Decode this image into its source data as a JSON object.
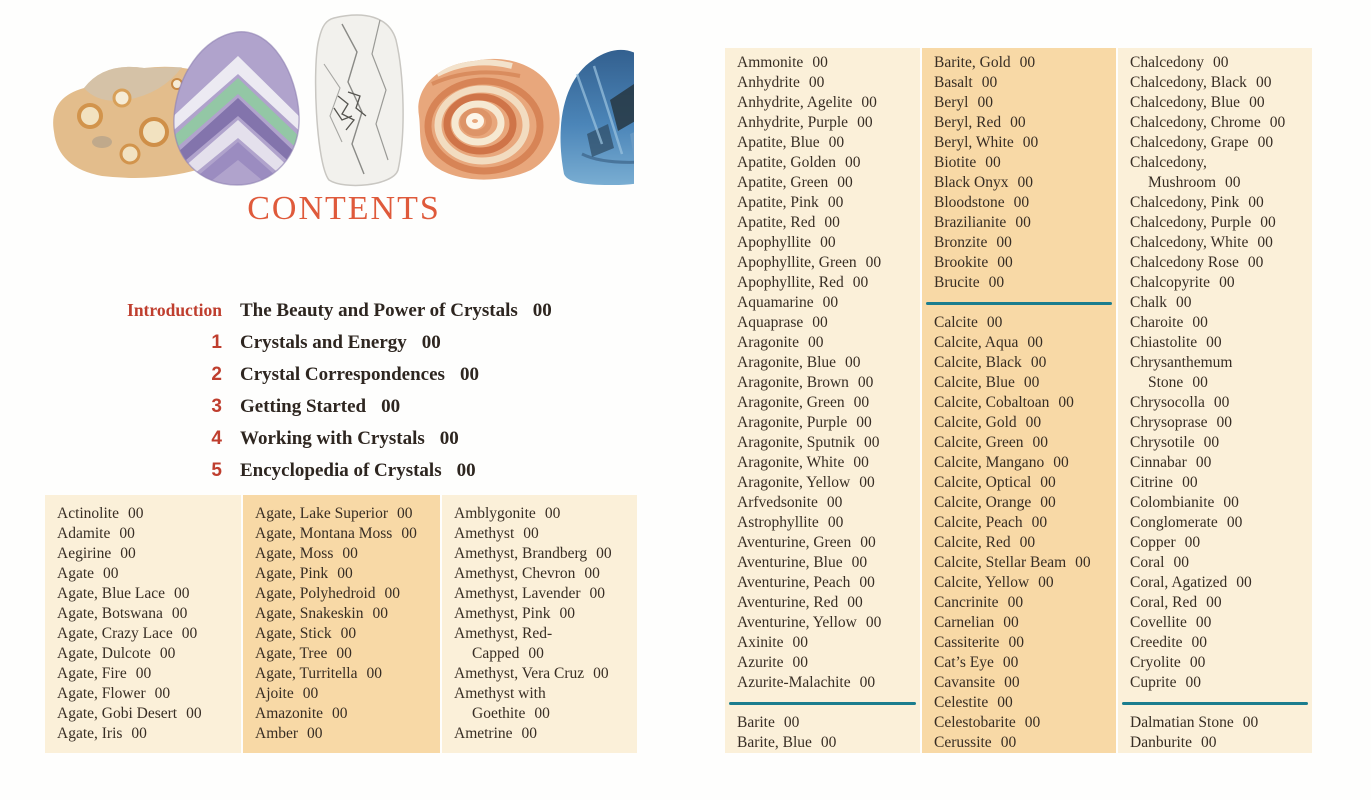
{
  "title": "CONTENTS",
  "colors": {
    "title_red": "#df5a3b",
    "chapter_red": "#bf3e2e",
    "body_text": "#372d24",
    "panel_light": "#fbf0d9",
    "panel_dark": "#f8d9a6",
    "divider_teal": "#1b7d8e"
  },
  "header_photos": [
    "ocean-jasper",
    "fluorite",
    "howlite",
    "lace-agate",
    "labradorite"
  ],
  "chapters": [
    {
      "label": "Introduction",
      "title": "The Beauty and Power of Crystals",
      "page": "00"
    },
    {
      "label": "1",
      "title": "Crystals and Energy",
      "page": "00"
    },
    {
      "label": "2",
      "title": "Crystal Correspondences",
      "page": "00"
    },
    {
      "label": "3",
      "title": "Getting Started",
      "page": "00"
    },
    {
      "label": "4",
      "title": "Working with Crystals",
      "page": "00"
    },
    {
      "label": "5",
      "title": "Encyclopedia of Crystals",
      "page": "00"
    }
  ],
  "left_columns": [
    [
      {
        "name": "Actinolite",
        "page": "00"
      },
      {
        "name": "Adamite",
        "page": "00"
      },
      {
        "name": "Aegirine",
        "page": "00"
      },
      {
        "name": "Agate",
        "page": "00"
      },
      {
        "name": "Agate, Blue Lace",
        "page": "00"
      },
      {
        "name": "Agate, Botswana",
        "page": "00"
      },
      {
        "name": "Agate, Crazy Lace",
        "page": "00"
      },
      {
        "name": "Agate, Dulcote",
        "page": "00"
      },
      {
        "name": "Agate, Fire",
        "page": "00"
      },
      {
        "name": "Agate, Flower",
        "page": "00"
      },
      {
        "name": "Agate, Gobi Desert",
        "page": "00"
      },
      {
        "name": "Agate, Iris",
        "page": "00"
      }
    ],
    [
      {
        "name": "Agate, Lake Superior",
        "page": "00"
      },
      {
        "name": "Agate, Montana Moss",
        "page": "00"
      },
      {
        "name": "Agate, Moss",
        "page": "00"
      },
      {
        "name": "Agate, Pink",
        "page": "00"
      },
      {
        "name": "Agate, Polyhedroid",
        "page": "00"
      },
      {
        "name": "Agate, Snakeskin",
        "page": "00"
      },
      {
        "name": "Agate, Stick",
        "page": "00"
      },
      {
        "name": "Agate, Tree",
        "page": "00"
      },
      {
        "name": "Agate, Turritella",
        "page": "00"
      },
      {
        "name": "Ajoite",
        "page": "00"
      },
      {
        "name": "Amazonite",
        "page": "00"
      },
      {
        "name": "Amber",
        "page": "00"
      }
    ],
    [
      {
        "name": "Amblygonite",
        "page": "00"
      },
      {
        "name": "Amethyst",
        "page": "00"
      },
      {
        "name": "Amethyst, Brandberg",
        "page": "00"
      },
      {
        "name": "Amethyst, Chevron",
        "page": "00"
      },
      {
        "name": "Amethyst, Lavender",
        "page": "00"
      },
      {
        "name": "Amethyst, Pink",
        "page": "00"
      },
      {
        "name": "Amethyst, Red-",
        "name2": "Capped",
        "page": "00"
      },
      {
        "name": "Amethyst, Vera Cruz",
        "page": "00"
      },
      {
        "name": "Amethyst with",
        "name2": "Goethite",
        "page": "00"
      },
      {
        "name": "Ametrine",
        "page": "00"
      }
    ]
  ],
  "right_columns": [
    [
      {
        "name": "Ammonite",
        "page": "00"
      },
      {
        "name": "Anhydrite",
        "page": "00"
      },
      {
        "name": "Anhydrite, Agelite",
        "page": "00"
      },
      {
        "name": "Anhydrite, Purple",
        "page": "00"
      },
      {
        "name": "Apatite, Blue",
        "page": "00"
      },
      {
        "name": "Apatite, Golden",
        "page": "00"
      },
      {
        "name": "Apatite, Green",
        "page": "00"
      },
      {
        "name": "Apatite, Pink",
        "page": "00"
      },
      {
        "name": "Apatite, Red",
        "page": "00"
      },
      {
        "name": "Apophyllite",
        "page": "00"
      },
      {
        "name": "Apophyllite, Green",
        "page": "00"
      },
      {
        "name": "Apophyllite, Red",
        "page": "00"
      },
      {
        "name": "Aquamarine",
        "page": "00"
      },
      {
        "name": "Aquaprase",
        "page": "00"
      },
      {
        "name": "Aragonite",
        "page": "00"
      },
      {
        "name": "Aragonite, Blue",
        "page": "00"
      },
      {
        "name": "Aragonite, Brown",
        "page": "00"
      },
      {
        "name": "Aragonite, Green",
        "page": "00"
      },
      {
        "name": "Aragonite, Purple",
        "page": "00"
      },
      {
        "name": "Aragonite, Sputnik",
        "page": "00"
      },
      {
        "name": "Aragonite, White",
        "page": "00"
      },
      {
        "name": "Aragonite, Yellow",
        "page": "00"
      },
      {
        "name": "Arfvedsonite",
        "page": "00"
      },
      {
        "name": "Astrophyllite",
        "page": "00"
      },
      {
        "name": "Aventurine, Green",
        "page": "00"
      },
      {
        "name": "Aventurine, Blue",
        "page": "00"
      },
      {
        "name": "Aventurine, Peach",
        "page": "00"
      },
      {
        "name": "Aventurine, Red",
        "page": "00"
      },
      {
        "name": "Aventurine, Yellow",
        "page": "00"
      },
      {
        "name": "Axinite",
        "page": "00"
      },
      {
        "name": "Azurite",
        "page": "00"
      },
      {
        "name": "Azurite-Malachite",
        "page": "00"
      },
      {
        "divider": true
      },
      {
        "name": "Barite",
        "page": "00"
      },
      {
        "name": "Barite, Blue",
        "page": "00"
      }
    ],
    [
      {
        "name": "Barite, Gold",
        "page": "00"
      },
      {
        "name": "Basalt",
        "page": "00"
      },
      {
        "name": "Beryl",
        "page": "00"
      },
      {
        "name": "Beryl, Red",
        "page": "00"
      },
      {
        "name": "Beryl, White",
        "page": "00"
      },
      {
        "name": "Biotite",
        "page": "00"
      },
      {
        "name": "Black Onyx",
        "page": "00"
      },
      {
        "name": "Bloodstone",
        "page": "00"
      },
      {
        "name": "Brazilianite",
        "page": "00"
      },
      {
        "name": "Bronzite",
        "page": "00"
      },
      {
        "name": "Brookite",
        "page": "00"
      },
      {
        "name": "Brucite",
        "page": "00"
      },
      {
        "divider": true
      },
      {
        "name": "Calcite",
        "page": "00"
      },
      {
        "name": "Calcite, Aqua",
        "page": "00"
      },
      {
        "name": "Calcite, Black",
        "page": "00"
      },
      {
        "name": "Calcite, Blue",
        "page": "00"
      },
      {
        "name": "Calcite, Cobaltoan",
        "page": "00"
      },
      {
        "name": "Calcite, Gold",
        "page": "00"
      },
      {
        "name": "Calcite, Green",
        "page": "00"
      },
      {
        "name": "Calcite, Mangano",
        "page": "00"
      },
      {
        "name": "Calcite, Optical",
        "page": "00"
      },
      {
        "name": "Calcite, Orange",
        "page": "00"
      },
      {
        "name": "Calcite, Peach",
        "page": "00"
      },
      {
        "name": "Calcite, Red",
        "page": "00"
      },
      {
        "name": "Calcite, Stellar Beam",
        "page": "00"
      },
      {
        "name": "Calcite, Yellow",
        "page": "00"
      },
      {
        "name": "Cancrinite",
        "page": "00"
      },
      {
        "name": "Carnelian",
        "page": "00"
      },
      {
        "name": "Cassiterite",
        "page": "00"
      },
      {
        "name": "Cat’s Eye",
        "page": "00"
      },
      {
        "name": "Cavansite",
        "page": "00"
      },
      {
        "name": "Celestite",
        "page": "00"
      },
      {
        "name": "Celestobarite",
        "page": "00"
      },
      {
        "name": "Cerussite",
        "page": "00"
      }
    ],
    [
      {
        "name": "Chalcedony",
        "page": "00"
      },
      {
        "name": "Chalcedony, Black",
        "page": "00"
      },
      {
        "name": "Chalcedony, Blue",
        "page": "00"
      },
      {
        "name": "Chalcedony, Chrome",
        "page": "00"
      },
      {
        "name": "Chalcedony, Grape",
        "page": "00"
      },
      {
        "name": "Chalcedony,",
        "name2": "Mushroom",
        "page": "00"
      },
      {
        "name": "Chalcedony, Pink",
        "page": "00"
      },
      {
        "name": "Chalcedony, Purple",
        "page": "00"
      },
      {
        "name": "Chalcedony, White",
        "page": "00"
      },
      {
        "name": "Chalcedony Rose",
        "page": "00"
      },
      {
        "name": "Chalcopyrite",
        "page": "00"
      },
      {
        "name": "Chalk",
        "page": "00"
      },
      {
        "name": "Charoite",
        "page": "00"
      },
      {
        "name": "Chiastolite",
        "page": "00"
      },
      {
        "name": "Chrysanthemum",
        "name2": "Stone",
        "page": "00"
      },
      {
        "name": "Chrysocolla",
        "page": "00"
      },
      {
        "name": "Chrysoprase",
        "page": "00"
      },
      {
        "name": "Chrysotile",
        "page": "00"
      },
      {
        "name": "Cinnabar",
        "page": "00"
      },
      {
        "name": "Citrine",
        "page": "00"
      },
      {
        "name": "Colombianite",
        "page": "00"
      },
      {
        "name": "Conglomerate",
        "page": "00"
      },
      {
        "name": "Copper",
        "page": "00"
      },
      {
        "name": "Coral",
        "page": "00"
      },
      {
        "name": "Coral, Agatized",
        "page": "00"
      },
      {
        "name": "Coral, Red",
        "page": "00"
      },
      {
        "name": "Covellite",
        "page": "00"
      },
      {
        "name": "Creedite",
        "page": "00"
      },
      {
        "name": "Cryolite",
        "page": "00"
      },
      {
        "name": "Cuprite",
        "page": "00"
      },
      {
        "divider": true
      },
      {
        "name": "Dalmatian Stone",
        "page": "00"
      },
      {
        "name": "Danburite",
        "page": "00"
      }
    ]
  ]
}
